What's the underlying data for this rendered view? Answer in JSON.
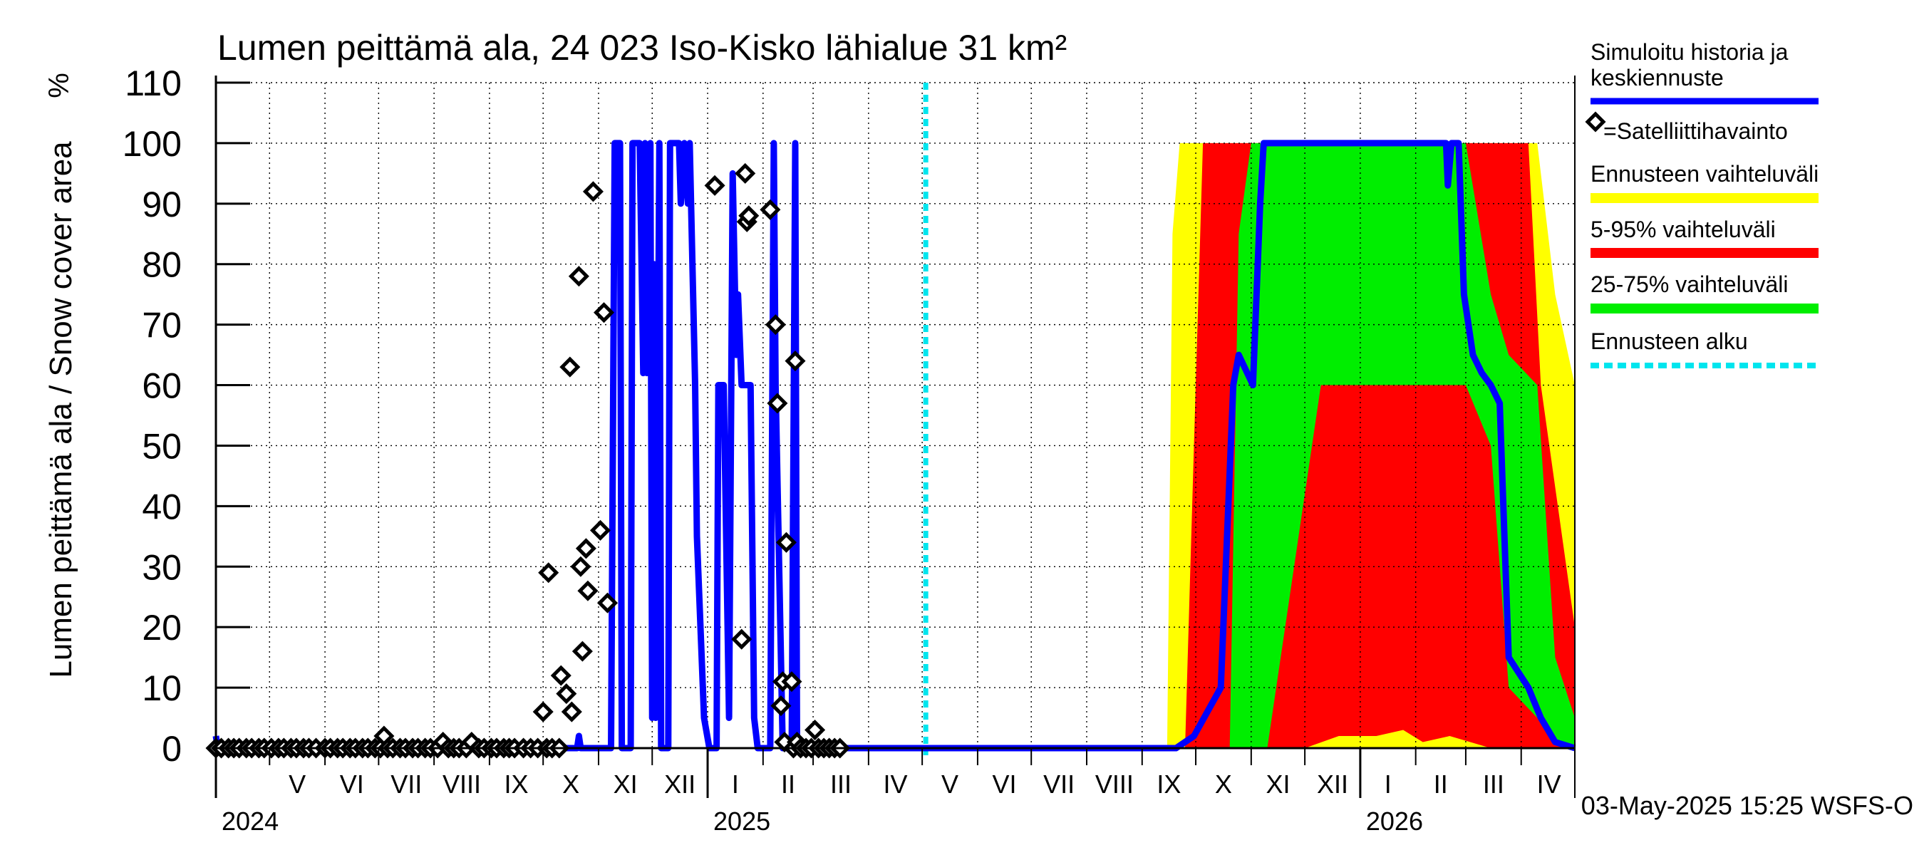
{
  "chart_data": {
    "type": "area",
    "title": "Lumen peittämä ala, 24 023 Iso-Kisko lähialue 31 km²",
    "ylabel": "Lumen peittämä ala / Snow cover area",
    "yunit": "%",
    "ylim": [
      0,
      110
    ],
    "yticks": [
      0,
      10,
      20,
      30,
      40,
      50,
      60,
      70,
      80,
      90,
      100,
      110
    ],
    "xlim": [
      "2024-04-01",
      "2026-05-01"
    ],
    "month_labels": [
      {
        "label": "V",
        "start": "2024-05-01"
      },
      {
        "label": "VI",
        "start": "2024-06-01"
      },
      {
        "label": "VII",
        "start": "2024-07-01"
      },
      {
        "label": "VIII",
        "start": "2024-08-01"
      },
      {
        "label": "IX",
        "start": "2024-09-01"
      },
      {
        "label": "X",
        "start": "2024-10-01"
      },
      {
        "label": "XI",
        "start": "2024-11-01"
      },
      {
        "label": "XII",
        "start": "2024-12-01"
      },
      {
        "label": "I",
        "start": "2025-01-01"
      },
      {
        "label": "II",
        "start": "2025-02-01"
      },
      {
        "label": "III",
        "start": "2025-03-01"
      },
      {
        "label": "IV",
        "start": "2025-04-01"
      },
      {
        "label": "V",
        "start": "2025-05-01"
      },
      {
        "label": "VI",
        "start": "2025-06-01"
      },
      {
        "label": "VII",
        "start": "2025-07-01"
      },
      {
        "label": "VIII",
        "start": "2025-08-01"
      },
      {
        "label": "IX",
        "start": "2025-09-01"
      },
      {
        "label": "X",
        "start": "2025-10-01"
      },
      {
        "label": "XI",
        "start": "2025-11-01"
      },
      {
        "label": "XII",
        "start": "2025-12-01"
      },
      {
        "label": "I",
        "start": "2026-01-01"
      },
      {
        "label": "II",
        "start": "2026-02-01"
      },
      {
        "label": "III",
        "start": "2026-03-01"
      },
      {
        "label": "IV",
        "start": "2026-04-01"
      }
    ],
    "year_labels": [
      {
        "label": "2024",
        "date": "2024-04-01"
      },
      {
        "label": "2025",
        "date": "2025-01-01"
      },
      {
        "label": "2026",
        "date": "2026-01-01"
      }
    ],
    "forecast_start": "2025-05-03",
    "legend": [
      {
        "label": "Simuloitu historia ja keskiennuste",
        "color": "#0000ff",
        "kind": "line"
      },
      {
        "label": "=Satelliittihavainto",
        "color": "#000000",
        "kind": "diamond"
      },
      {
        "label": "Ennusteen vaihteluväli",
        "color": "#ffff00",
        "kind": "band"
      },
      {
        "label": "5-95% vaihteluväli",
        "color": "#ff0000",
        "kind": "band"
      },
      {
        "label": "25-75% vaihteluväli",
        "color": "#00ee00",
        "kind": "band"
      },
      {
        "label": "Ennusteen alku",
        "color": "#00e5ee",
        "kind": "dashed"
      }
    ],
    "legend_position": "right",
    "grid": true,
    "series": [
      {
        "name": "Simuloitu historia ja keskiennuste",
        "color": "#0000ff",
        "points": [
          [
            "2024-04-01",
            2
          ],
          [
            "2024-04-02",
            0
          ],
          [
            "2024-10-20",
            0
          ],
          [
            "2024-10-21",
            2
          ],
          [
            "2024-10-22",
            0
          ],
          [
            "2024-11-08",
            0
          ],
          [
            "2024-11-10",
            100
          ],
          [
            "2024-11-13",
            100
          ],
          [
            "2024-11-14",
            0
          ],
          [
            "2024-11-19",
            0
          ],
          [
            "2024-11-20",
            100
          ],
          [
            "2024-11-24",
            100
          ],
          [
            "2024-11-26",
            62
          ],
          [
            "2024-11-27",
            100
          ],
          [
            "2024-11-28",
            62
          ],
          [
            "2024-11-30",
            100
          ],
          [
            "2024-12-01",
            5
          ],
          [
            "2024-12-02",
            80
          ],
          [
            "2024-12-03",
            5
          ],
          [
            "2024-12-05",
            100
          ],
          [
            "2024-12-06",
            0
          ],
          [
            "2024-12-10",
            0
          ],
          [
            "2024-12-11",
            100
          ],
          [
            "2024-12-16",
            100
          ],
          [
            "2024-12-17",
            90
          ],
          [
            "2024-12-19",
            100
          ],
          [
            "2024-12-21",
            90
          ],
          [
            "2024-12-22",
            100
          ],
          [
            "2024-12-25",
            60
          ],
          [
            "2024-12-26",
            35
          ],
          [
            "2024-12-30",
            5
          ],
          [
            "2025-01-02",
            0
          ],
          [
            "2025-01-06",
            0
          ],
          [
            "2025-01-07",
            60
          ],
          [
            "2025-01-10",
            60
          ],
          [
            "2025-01-13",
            5
          ],
          [
            "2025-01-15",
            95
          ],
          [
            "2025-01-17",
            65
          ],
          [
            "2025-01-18",
            75
          ],
          [
            "2025-01-20",
            60
          ],
          [
            "2025-01-25",
            60
          ],
          [
            "2025-01-27",
            5
          ],
          [
            "2025-01-29",
            0
          ],
          [
            "2025-02-05",
            0
          ],
          [
            "2025-02-07",
            100
          ],
          [
            "2025-02-08",
            60
          ],
          [
            "2025-02-12",
            0
          ],
          [
            "2025-02-17",
            0
          ],
          [
            "2025-02-19",
            100
          ],
          [
            "2025-02-20",
            0
          ],
          [
            "2025-05-03",
            0
          ],
          [
            "2025-09-20",
            0
          ],
          [
            "2025-09-30",
            2
          ],
          [
            "2025-10-15",
            10
          ],
          [
            "2025-10-22",
            60
          ],
          [
            "2025-10-25",
            65
          ],
          [
            "2025-11-02",
            60
          ],
          [
            "2025-11-06",
            90
          ],
          [
            "2025-11-08",
            100
          ],
          [
            "2025-12-20",
            100
          ],
          [
            "2026-01-20",
            100
          ],
          [
            "2026-02-18",
            100
          ],
          [
            "2026-02-19",
            93
          ],
          [
            "2026-02-21",
            100
          ],
          [
            "2026-02-25",
            100
          ],
          [
            "2026-02-28",
            75
          ],
          [
            "2026-03-05",
            65
          ],
          [
            "2026-03-10",
            62
          ],
          [
            "2026-03-15",
            60
          ],
          [
            "2026-03-20",
            57
          ],
          [
            "2026-03-25",
            15
          ],
          [
            "2026-04-05",
            10
          ],
          [
            "2026-04-12",
            5
          ],
          [
            "2026-04-20",
            1
          ],
          [
            "2026-05-01",
            0
          ]
        ]
      },
      {
        "name": "Ennusteen vaihteluväli",
        "color": "#ffff00",
        "points": [
          [
            "2025-05-03",
            0,
            0
          ],
          [
            "2025-09-15",
            0,
            0
          ],
          [
            "2025-09-18",
            0,
            85
          ],
          [
            "2025-09-22",
            0,
            100
          ],
          [
            "2025-10-15",
            0,
            100
          ],
          [
            "2025-11-15",
            0,
            100
          ],
          [
            "2025-12-15",
            0,
            100
          ],
          [
            "2026-01-15",
            0,
            100
          ],
          [
            "2026-02-15",
            0,
            100
          ],
          [
            "2026-03-15",
            0,
            100
          ],
          [
            "2026-04-10",
            0,
            100
          ],
          [
            "2026-04-20",
            0,
            75
          ],
          [
            "2026-05-01",
            0,
            60
          ]
        ]
      },
      {
        "name": "5-95% vaihteluväli",
        "color": "#ff0000",
        "points": [
          [
            "2025-05-03",
            0,
            0
          ],
          [
            "2025-09-25",
            0,
            0
          ],
          [
            "2025-09-30",
            0,
            50
          ],
          [
            "2025-10-05",
            0,
            100
          ],
          [
            "2025-11-10",
            0,
            100
          ],
          [
            "2025-12-01",
            0,
            100
          ],
          [
            "2025-12-20",
            2,
            100
          ],
          [
            "2026-01-10",
            2,
            100
          ],
          [
            "2026-01-25",
            3,
            100
          ],
          [
            "2026-02-05",
            1,
            100
          ],
          [
            "2026-02-20",
            2,
            100
          ],
          [
            "2026-03-15",
            0,
            100
          ],
          [
            "2026-04-05",
            0,
            100
          ],
          [
            "2026-04-12",
            0,
            60
          ],
          [
            "2026-05-01",
            0,
            20
          ]
        ]
      },
      {
        "name": "25-75% vaihteluväli",
        "color": "#00ee00",
        "points": [
          [
            "2025-05-03",
            0,
            0
          ],
          [
            "2025-10-20",
            0,
            0
          ],
          [
            "2025-10-25",
            0,
            85
          ],
          [
            "2025-11-01",
            0,
            100
          ],
          [
            "2025-11-10",
            0,
            100
          ],
          [
            "2025-12-10",
            60,
            100
          ],
          [
            "2026-01-10",
            60,
            100
          ],
          [
            "2026-02-10",
            60,
            100
          ],
          [
            "2026-03-01",
            60,
            100
          ],
          [
            "2026-03-15",
            50,
            75
          ],
          [
            "2026-03-25",
            10,
            65
          ],
          [
            "2026-04-10",
            5,
            60
          ],
          [
            "2026-04-20",
            1,
            15
          ],
          [
            "2026-05-01",
            0,
            5
          ]
        ]
      }
    ],
    "observations": [
      [
        "2024-04-01",
        0
      ],
      [
        "2024-04-04",
        0
      ],
      [
        "2024-04-08",
        0
      ],
      [
        "2024-04-11",
        0
      ],
      [
        "2024-04-14",
        0
      ],
      [
        "2024-04-18",
        0
      ],
      [
        "2024-04-21",
        0
      ],
      [
        "2024-04-25",
        0
      ],
      [
        "2024-04-28",
        0
      ],
      [
        "2024-05-02",
        0
      ],
      [
        "2024-05-06",
        0
      ],
      [
        "2024-05-09",
        0
      ],
      [
        "2024-05-13",
        0
      ],
      [
        "2024-05-16",
        0
      ],
      [
        "2024-05-20",
        0
      ],
      [
        "2024-05-23",
        0
      ],
      [
        "2024-05-27",
        0
      ],
      [
        "2024-06-01",
        0
      ],
      [
        "2024-06-04",
        0
      ],
      [
        "2024-06-08",
        0
      ],
      [
        "2024-06-11",
        0
      ],
      [
        "2024-06-15",
        0
      ],
      [
        "2024-06-18",
        0
      ],
      [
        "2024-06-22",
        0
      ],
      [
        "2024-06-25",
        0
      ],
      [
        "2024-06-29",
        0
      ],
      [
        "2024-07-02",
        0
      ],
      [
        "2024-07-04",
        2
      ],
      [
        "2024-07-06",
        0
      ],
      [
        "2024-07-09",
        0
      ],
      [
        "2024-07-13",
        0
      ],
      [
        "2024-07-16",
        0
      ],
      [
        "2024-07-20",
        0
      ],
      [
        "2024-07-23",
        0
      ],
      [
        "2024-07-27",
        0
      ],
      [
        "2024-07-30",
        0
      ],
      [
        "2024-08-03",
        0
      ],
      [
        "2024-08-06",
        1
      ],
      [
        "2024-08-09",
        0
      ],
      [
        "2024-08-12",
        0
      ],
      [
        "2024-08-15",
        0
      ],
      [
        "2024-08-19",
        0
      ],
      [
        "2024-08-22",
        1
      ],
      [
        "2024-08-26",
        0
      ],
      [
        "2024-08-29",
        0
      ],
      [
        "2024-09-02",
        0
      ],
      [
        "2024-09-05",
        0
      ],
      [
        "2024-09-09",
        0
      ],
      [
        "2024-09-12",
        0
      ],
      [
        "2024-09-15",
        0
      ],
      [
        "2024-09-20",
        0
      ],
      [
        "2024-09-24",
        0
      ],
      [
        "2024-09-28",
        0
      ],
      [
        "2024-10-01",
        6
      ],
      [
        "2024-10-03",
        0
      ],
      [
        "2024-10-04",
        29
      ],
      [
        "2024-10-06",
        0
      ],
      [
        "2024-10-10",
        0
      ],
      [
        "2024-10-11",
        12
      ],
      [
        "2024-10-14",
        9
      ],
      [
        "2024-10-16",
        63
      ],
      [
        "2024-10-17",
        6
      ],
      [
        "2024-10-21",
        78
      ],
      [
        "2024-10-22",
        30
      ],
      [
        "2024-10-23",
        16
      ],
      [
        "2024-10-25",
        33
      ],
      [
        "2024-10-26",
        26
      ],
      [
        "2024-10-29",
        92
      ],
      [
        "2024-11-02",
        36
      ],
      [
        "2024-11-04",
        72
      ],
      [
        "2024-11-06",
        24
      ],
      [
        "2025-01-05",
        93
      ],
      [
        "2025-01-20",
        18
      ],
      [
        "2025-01-22",
        95
      ],
      [
        "2025-01-23",
        87
      ],
      [
        "2025-01-24",
        88
      ],
      [
        "2025-02-05",
        89
      ],
      [
        "2025-02-08",
        70
      ],
      [
        "2025-02-09",
        57
      ],
      [
        "2025-02-11",
        7
      ],
      [
        "2025-02-12",
        11
      ],
      [
        "2025-02-13",
        1
      ],
      [
        "2025-02-14",
        34
      ],
      [
        "2025-02-17",
        11
      ],
      [
        "2025-02-18",
        0
      ],
      [
        "2025-02-19",
        64
      ],
      [
        "2025-02-20",
        1
      ],
      [
        "2025-02-22",
        0
      ],
      [
        "2025-02-25",
        0
      ],
      [
        "2025-02-28",
        0
      ],
      [
        "2025-03-02",
        3
      ],
      [
        "2025-03-04",
        0
      ],
      [
        "2025-03-07",
        0
      ],
      [
        "2025-03-10",
        0
      ],
      [
        "2025-03-13",
        0
      ],
      [
        "2025-03-16",
        0
      ]
    ]
  },
  "footer": {
    "timestamp": "03-May-2025 15:25 WSFS-O"
  }
}
